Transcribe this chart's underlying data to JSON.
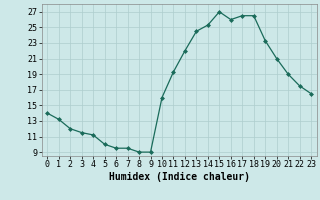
{
  "x": [
    0,
    1,
    2,
    3,
    4,
    5,
    6,
    7,
    8,
    9,
    10,
    11,
    12,
    13,
    14,
    15,
    16,
    17,
    18,
    19,
    20,
    21,
    22,
    23
  ],
  "y": [
    14,
    13.2,
    12,
    11.5,
    11.2,
    10,
    9.5,
    9.5,
    9,
    9,
    16,
    19.3,
    22,
    24.5,
    25.3,
    27,
    26,
    26.5,
    26.5,
    23.3,
    21,
    19,
    17.5,
    16.5
  ],
  "line_color": "#1a6b5a",
  "marker": "D",
  "marker_size": 2.0,
  "bg_color": "#cde8e8",
  "grid_color": "#aecece",
  "xlabel": "Humidex (Indice chaleur)",
  "xlabel_fontsize": 7,
  "xlabel_bold": true,
  "yticks": [
    9,
    11,
    13,
    15,
    17,
    19,
    21,
    23,
    25,
    27
  ],
  "ylim": [
    8.5,
    28.0
  ],
  "xlim": [
    -0.5,
    23.5
  ],
  "xtick_labels": [
    "0",
    "1",
    "2",
    "3",
    "4",
    "5",
    "6",
    "7",
    "8",
    "9",
    "10",
    "11",
    "12",
    "13",
    "14",
    "15",
    "16",
    "17",
    "18",
    "19",
    "20",
    "21",
    "22",
    "23"
  ],
  "tick_fontsize": 6.0,
  "linewidth": 0.9
}
